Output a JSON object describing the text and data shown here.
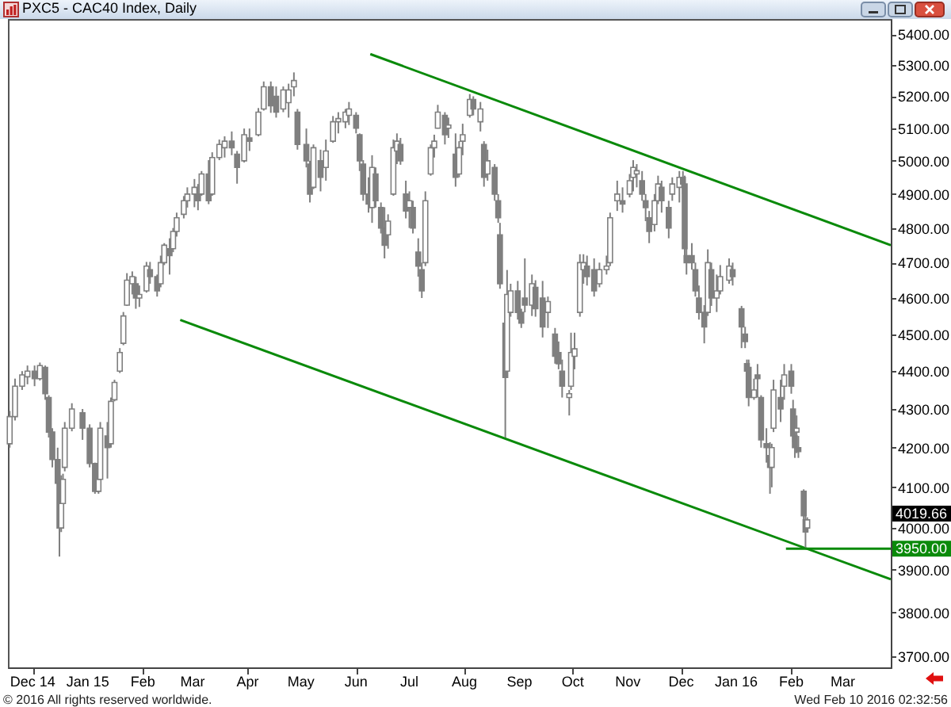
{
  "chart_data": {
    "type": "candlestick",
    "title": "PXC5 - CAC40 Index, Daily",
    "color": "#7f7f7f",
    "log": true,
    "xlim": [
      "2014-11-17",
      "2016-03-28"
    ],
    "xticks": [
      {
        "value": "2014-12-01",
        "label": "Dec 14"
      },
      {
        "value": "2015-01-01",
        "label": "Jan 15"
      },
      {
        "value": "2015-02-01",
        "label": "Feb"
      },
      {
        "value": "2015-03-01",
        "label": "Mar"
      },
      {
        "value": "2015-04-01",
        "label": "Apr"
      },
      {
        "value": "2015-05-01",
        "label": "May"
      },
      {
        "value": "2015-06-01",
        "label": "Jun"
      },
      {
        "value": "2015-07-01",
        "label": "Jul"
      },
      {
        "value": "2015-08-01",
        "label": "Aug"
      },
      {
        "value": "2015-09-01",
        "label": "Sep"
      },
      {
        "value": "2015-10-01",
        "label": "Oct"
      },
      {
        "value": "2015-11-01",
        "label": "Nov"
      },
      {
        "value": "2015-12-01",
        "label": "Dec"
      },
      {
        "value": "2016-01-01",
        "label": "Jan 16"
      },
      {
        "value": "2016-02-01",
        "label": "Feb"
      },
      {
        "value": "2016-03-01",
        "label": "Mar"
      }
    ],
    "ylim": [
      3675,
      5450
    ],
    "yticks": [
      {
        "value": 3700,
        "label": "3700.00"
      },
      {
        "value": 3800,
        "label": "3800.00"
      },
      {
        "value": 3900,
        "label": "3900.00"
      },
      {
        "value": 4000,
        "label": "4000.00"
      },
      {
        "value": 4100,
        "label": "4100.00"
      },
      {
        "value": 4200,
        "label": "4200.00"
      },
      {
        "value": 4300,
        "label": "4300.00"
      },
      {
        "value": 4400,
        "label": "4400.00"
      },
      {
        "value": 4500,
        "label": "4500.00"
      },
      {
        "value": 4600,
        "label": "4600.00"
      },
      {
        "value": 4700,
        "label": "4700.00"
      },
      {
        "value": 4800,
        "label": "4800.00"
      },
      {
        "value": 4900,
        "label": "4900.00"
      },
      {
        "value": 5000,
        "label": "5000.00"
      },
      {
        "value": 5100,
        "label": "5100.00"
      },
      {
        "value": 5200,
        "label": "5200.00"
      },
      {
        "value": 5300,
        "label": "5300.00"
      },
      {
        "value": 5400,
        "label": "5400.00"
      }
    ],
    "x": [
      "2014-11-18",
      "2014-11-21",
      "2014-11-25",
      "2014-11-28",
      "2014-12-02",
      "2014-12-05",
      "2014-12-08",
      "2014-12-10",
      "2014-12-12",
      "2014-12-15",
      "2014-12-16",
      "2014-12-17",
      "2014-12-18",
      "2014-12-19",
      "2014-12-23",
      "2014-12-29",
      "2015-01-02",
      "2015-01-05",
      "2015-01-07",
      "2015-01-08",
      "2015-01-12",
      "2015-01-14",
      "2015-01-16",
      "2015-01-19",
      "2015-01-21",
      "2015-01-23",
      "2015-01-26",
      "2015-01-28",
      "2015-01-30",
      "2015-02-03",
      "2015-02-05",
      "2015-02-09",
      "2015-02-11",
      "2015-02-13",
      "2015-02-16",
      "2015-02-18",
      "2015-02-20",
      "2015-02-24",
      "2015-02-26",
      "2015-03-02",
      "2015-03-04",
      "2015-03-06",
      "2015-03-10",
      "2015-03-12",
      "2015-03-16",
      "2015-03-19",
      "2015-03-23",
      "2015-03-26",
      "2015-03-30",
      "2015-04-02",
      "2015-04-07",
      "2015-04-10",
      "2015-04-14",
      "2015-04-17",
      "2015-04-21",
      "2015-04-24",
      "2015-04-27",
      "2015-04-29",
      "2015-05-04",
      "2015-05-06",
      "2015-05-08",
      "2015-05-12",
      "2015-05-15",
      "2015-05-19",
      "2015-05-22",
      "2015-05-26",
      "2015-05-28",
      "2015-06-01",
      "2015-06-03",
      "2015-06-05",
      "2015-06-08",
      "2015-06-10",
      "2015-06-12",
      "2015-06-15",
      "2015-06-17",
      "2015-06-19",
      "2015-06-22",
      "2015-06-24",
      "2015-06-26",
      "2015-06-29",
      "2015-07-01",
      "2015-07-03",
      "2015-07-06",
      "2015-07-08",
      "2015-07-10",
      "2015-07-13",
      "2015-07-15",
      "2015-07-17",
      "2015-07-21",
      "2015-07-23",
      "2015-07-27",
      "2015-07-29",
      "2015-07-31",
      "2015-08-04",
      "2015-08-06",
      "2015-08-10",
      "2015-08-12",
      "2015-08-14",
      "2015-08-18",
      "2015-08-20",
      "2015-08-21",
      "2015-08-24",
      "2015-08-25",
      "2015-08-27",
      "2015-08-31",
      "2015-09-02",
      "2015-09-04",
      "2015-09-08",
      "2015-09-10",
      "2015-09-14",
      "2015-09-17",
      "2015-09-21",
      "2015-09-23",
      "2015-09-25",
      "2015-09-29",
      "2015-09-30",
      "2015-10-02",
      "2015-10-05",
      "2015-10-07",
      "2015-10-09",
      "2015-10-13",
      "2015-10-16",
      "2015-10-20",
      "2015-10-22",
      "2015-10-26",
      "2015-10-29",
      "2015-11-02",
      "2015-11-04",
      "2015-11-06",
      "2015-11-09",
      "2015-11-11",
      "2015-11-13",
      "2015-11-16",
      "2015-11-18",
      "2015-11-20",
      "2015-11-24",
      "2015-11-26",
      "2015-11-30",
      "2015-12-02",
      "2015-12-03",
      "2015-12-04",
      "2015-12-07",
      "2015-12-09",
      "2015-12-11",
      "2015-12-14",
      "2015-12-16",
      "2015-12-18",
      "2015-12-21",
      "2015-12-23",
      "2015-12-28",
      "2015-12-30",
      "2016-01-04",
      "2016-01-06",
      "2016-01-07",
      "2016-01-08",
      "2016-01-11",
      "2016-01-13",
      "2016-01-15",
      "2016-01-18",
      "2016-01-20",
      "2016-01-21",
      "2016-01-22",
      "2016-01-26",
      "2016-01-28",
      "2016-02-01",
      "2016-02-02",
      "2016-02-03",
      "2016-02-04",
      "2016-02-05",
      "2016-02-08",
      "2016-02-09",
      "2016-02-10"
    ],
    "ohlc": [
      [
        4210,
        4295,
        4200,
        4280
      ],
      [
        4280,
        4380,
        4270,
        4360
      ],
      [
        4360,
        4400,
        4350,
        4390
      ],
      [
        4385,
        4415,
        4365,
        4400
      ],
      [
        4400,
        4415,
        4360,
        4380
      ],
      [
        4380,
        4423,
        4375,
        4415
      ],
      [
        4410,
        4415,
        4324,
        4340
      ],
      [
        4330,
        4336,
        4226,
        4240
      ],
      [
        4240,
        4250,
        4150,
        4170
      ],
      [
        4170,
        4200,
        4107,
        4110
      ],
      [
        4110,
        4134,
        3931,
        4000
      ],
      [
        4000,
        4130,
        3990,
        4060
      ],
      [
        4060,
        4134,
        4045,
        4120
      ],
      [
        4150,
        4266,
        4140,
        4250
      ],
      [
        4250,
        4315,
        4242,
        4300
      ],
      [
        4290,
        4300,
        4220,
        4250
      ],
      [
        4250,
        4260,
        4150,
        4160
      ],
      [
        4160,
        4162,
        4084,
        4090
      ],
      [
        4090,
        4146,
        4084,
        4120
      ],
      [
        4120,
        4266,
        4115,
        4250
      ],
      [
        4230,
        4266,
        4122,
        4200
      ],
      [
        4210,
        4330,
        4200,
        4320
      ],
      [
        4324,
        4377,
        4320,
        4370
      ],
      [
        4400,
        4462,
        4395,
        4450
      ],
      [
        4475,
        4561,
        4470,
        4550
      ],
      [
        4580,
        4670,
        4578,
        4650
      ],
      [
        4640,
        4675,
        4610,
        4660
      ],
      [
        4640,
        4660,
        4570,
        4600
      ],
      [
        4600,
        4635,
        4575,
        4610
      ],
      [
        4620,
        4702,
        4615,
        4690
      ],
      [
        4680,
        4702,
        4640,
        4660
      ],
      [
        4660,
        4666,
        4604,
        4620
      ],
      [
        4640,
        4720,
        4630,
        4700
      ],
      [
        4700,
        4756,
        4693,
        4750
      ],
      [
        4740,
        4770,
        4666,
        4720
      ],
      [
        4740,
        4800,
        4730,
        4790
      ],
      [
        4790,
        4845,
        4775,
        4830
      ],
      [
        4840,
        4894,
        4828,
        4880
      ],
      [
        4880,
        4920,
        4860,
        4900
      ],
      [
        4900,
        4945,
        4861,
        4920
      ],
      [
        4900,
        4930,
        4852,
        4880
      ],
      [
        4900,
        4969,
        4895,
        4960
      ],
      [
        4960,
        5002,
        4870,
        4880
      ],
      [
        4900,
        5026,
        4895,
        5010
      ],
      [
        5010,
        5065,
        5002,
        5050
      ],
      [
        5040,
        5075,
        5010,
        5060
      ],
      [
        5060,
        5090,
        5017,
        5040
      ],
      [
        5020,
        5030,
        4931,
        4980
      ],
      [
        5000,
        5099,
        4995,
        5080
      ],
      [
        5070,
        5099,
        5030,
        5060
      ],
      [
        5080,
        5163,
        5075,
        5150
      ],
      [
        5160,
        5247,
        5155,
        5230
      ],
      [
        5230,
        5247,
        5148,
        5170
      ],
      [
        5200,
        5231,
        5133,
        5150
      ],
      [
        5160,
        5231,
        5150,
        5220
      ],
      [
        5180,
        5240,
        5133,
        5220
      ],
      [
        5230,
        5276,
        5200,
        5250
      ],
      [
        5150,
        5160,
        5034,
        5050
      ],
      [
        5050,
        5099,
        4980,
        5000
      ],
      [
        4990,
        5000,
        4875,
        4900
      ],
      [
        4920,
        5050,
        4915,
        5040
      ],
      [
        5000,
        5034,
        4908,
        4950
      ],
      [
        4980,
        5065,
        4940,
        5030
      ],
      [
        5060,
        5138,
        5055,
        5120
      ],
      [
        5120,
        5150,
        5084,
        5130
      ],
      [
        5120,
        5160,
        5100,
        5150
      ],
      [
        5140,
        5182,
        5110,
        5160
      ],
      [
        5140,
        5150,
        5084,
        5100
      ],
      [
        5080,
        5084,
        4969,
        5000
      ],
      [
        4990,
        5002,
        4880,
        4900
      ],
      [
        4900,
        4950,
        4845,
        4870
      ],
      [
        4860,
        5017,
        4815,
        4980
      ],
      [
        4960,
        4980,
        4860,
        4880
      ],
      [
        4860,
        4875,
        4784,
        4800
      ],
      [
        4800,
        4861,
        4712,
        4750
      ],
      [
        4780,
        4840,
        4740,
        4820
      ],
      [
        4900,
        5065,
        4895,
        5040
      ],
      [
        5030,
        5084,
        4990,
        5060
      ],
      [
        5050,
        5070,
        4988,
        5000
      ],
      [
        4900,
        4940,
        4828,
        4850
      ],
      [
        4860,
        4908,
        4800,
        4880
      ],
      [
        4860,
        4880,
        4784,
        4800
      ],
      [
        4730,
        4770,
        4660,
        4690
      ],
      [
        4680,
        4700,
        4600,
        4620
      ],
      [
        4700,
        4908,
        4690,
        4880
      ],
      [
        4960,
        5050,
        4955,
        5040
      ],
      [
        5040,
        5080,
        5010,
        5060
      ],
      [
        5100,
        5173,
        5099,
        5150
      ],
      [
        5140,
        5150,
        5050,
        5080
      ],
      [
        5100,
        5133,
        5070,
        5110
      ],
      [
        5020,
        5084,
        4922,
        4950
      ],
      [
        4960,
        5060,
        4950,
        5040
      ],
      [
        5060,
        5114,
        5017,
        5080
      ],
      [
        5140,
        5207,
        5133,
        5190
      ],
      [
        5190,
        5200,
        5140,
        5160
      ],
      [
        5120,
        5182,
        5090,
        5160
      ],
      [
        5050,
        5060,
        4922,
        4950
      ],
      [
        4960,
        5034,
        4940,
        5000
      ],
      [
        4980,
        4990,
        4880,
        4900
      ],
      [
        4880,
        4900,
        4815,
        4830
      ],
      [
        4780,
        4815,
        4626,
        4640
      ],
      [
        4530,
        4591,
        4226,
        4383
      ],
      [
        4400,
        4679,
        4390,
        4610
      ],
      [
        4560,
        4640,
        4548,
        4620
      ],
      [
        4620,
        4648,
        4540,
        4560
      ],
      [
        4560,
        4570,
        4517,
        4530
      ],
      [
        4600,
        4712,
        4560,
        4580
      ],
      [
        4580,
        4666,
        4550,
        4640
      ],
      [
        4630,
        4650,
        4548,
        4570
      ],
      [
        4600,
        4648,
        4491,
        4520
      ],
      [
        4560,
        4604,
        4517,
        4590
      ],
      [
        4500,
        4517,
        4420,
        4440
      ],
      [
        4450,
        4480,
        4405,
        4420
      ],
      [
        4400,
        4431,
        4330,
        4360
      ],
      [
        4330,
        4350,
        4283,
        4340
      ],
      [
        4360,
        4504,
        4350,
        4450
      ],
      [
        4440,
        4504,
        4405,
        4460
      ],
      [
        4560,
        4724,
        4548,
        4700
      ],
      [
        4680,
        4724,
        4640,
        4700
      ],
      [
        4690,
        4720,
        4635,
        4660
      ],
      [
        4680,
        4712,
        4604,
        4620
      ],
      [
        4640,
        4700,
        4630,
        4680
      ],
      [
        4680,
        4720,
        4666,
        4690
      ],
      [
        4700,
        4845,
        4690,
        4830
      ],
      [
        4880,
        4940,
        4850,
        4900
      ],
      [
        4880,
        4920,
        4845,
        4870
      ],
      [
        4900,
        4960,
        4890,
        4940
      ],
      [
        4950,
        5002,
        4908,
        4980
      ],
      [
        4960,
        4990,
        4920,
        4970
      ],
      [
        4940,
        4969,
        4880,
        4900
      ],
      [
        4880,
        4900,
        4820,
        4860
      ],
      [
        4830,
        4850,
        4756,
        4790
      ],
      [
        4810,
        4900,
        4790,
        4880
      ],
      [
        4880,
        4955,
        4870,
        4930
      ],
      [
        4920,
        4940,
        4845,
        4880
      ],
      [
        4860,
        4880,
        4770,
        4800
      ],
      [
        4900,
        4950,
        4880,
        4930
      ],
      [
        4920,
        4969,
        4875,
        4950
      ],
      [
        4950,
        4969,
        4900,
        4930
      ],
      [
        4930,
        4955,
        4720,
        4740
      ],
      [
        4720,
        4740,
        4666,
        4700
      ],
      [
        4720,
        4756,
        4680,
        4700
      ],
      [
        4680,
        4700,
        4604,
        4620
      ],
      [
        4600,
        4635,
        4540,
        4560
      ],
      [
        4560,
        4580,
        4475,
        4520
      ],
      [
        4560,
        4738,
        4550,
        4700
      ],
      [
        4680,
        4700,
        4578,
        4600
      ],
      [
        4600,
        4666,
        4561,
        4620
      ],
      [
        4620,
        4693,
        4610,
        4660
      ],
      [
        4650,
        4712,
        4640,
        4690
      ],
      [
        4680,
        4700,
        4635,
        4660
      ],
      [
        4570,
        4578,
        4462,
        4520
      ],
      [
        4500,
        4520,
        4462,
        4480
      ],
      [
        4420,
        4431,
        4350,
        4400
      ],
      [
        4410,
        4431,
        4307,
        4330
      ],
      [
        4330,
        4380,
        4324,
        4350
      ],
      [
        4390,
        4419,
        4330,
        4380
      ],
      [
        4330,
        4336,
        4200,
        4220
      ],
      [
        4210,
        4250,
        4162,
        4200
      ],
      [
        4180,
        4214,
        4084,
        4150
      ],
      [
        4150,
        4210,
        4100,
        4200
      ],
      [
        4250,
        4377,
        4240,
        4350
      ],
      [
        4330,
        4377,
        4266,
        4300
      ],
      [
        4360,
        4419,
        4324,
        4390
      ],
      [
        4400,
        4419,
        4340,
        4360
      ],
      [
        4300,
        4324,
        4214,
        4230
      ],
      [
        4230,
        4283,
        4174,
        4200
      ],
      [
        4240,
        4283,
        4186,
        4250
      ],
      [
        4200,
        4230,
        4174,
        4190
      ],
      [
        4090,
        4095,
        4006,
        4030
      ],
      [
        4020,
        4030,
        3953,
        3990
      ],
      [
        4000,
        4026,
        3998,
        4019.66
      ]
    ],
    "series": [
      {
        "type": "line",
        "color": "#0a8a0a",
        "x": [
          "2015-06-09",
          "2016-03-28"
        ],
        "values": [
          5335,
          4750
        ]
      },
      {
        "type": "line",
        "color": "#0a8a0a",
        "x": [
          "2015-02-22",
          "2016-03-28"
        ],
        "values": [
          4539,
          3877
        ]
      },
      {
        "type": "line",
        "name": "3950.00",
        "color": "#0a8a0a",
        "x": [
          "2016-01-29",
          "2016-03-28"
        ],
        "values": [
          3950,
          3950
        ]
      }
    ],
    "annotations": [
      "4019.66",
      "© 2016 All rights reserved worldwide.",
      "Wed Feb 10 2016 02:32:56"
    ]
  }
}
